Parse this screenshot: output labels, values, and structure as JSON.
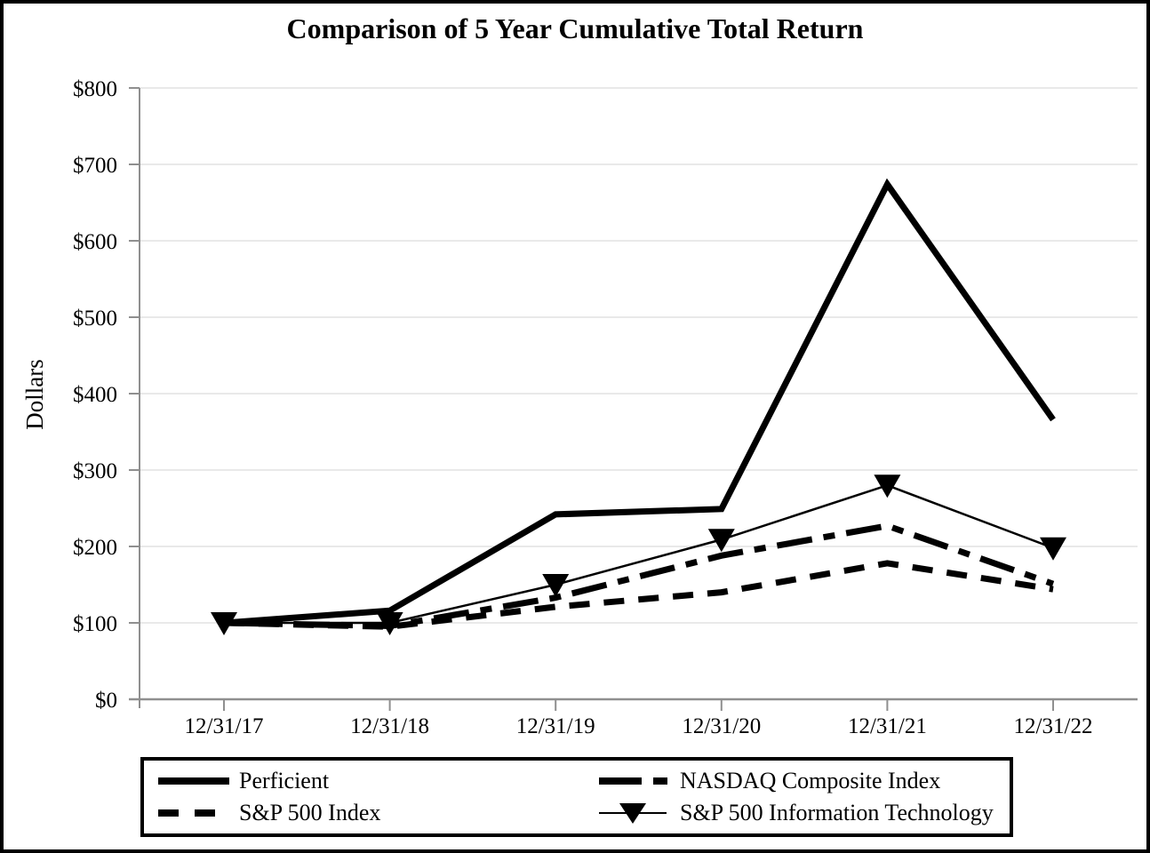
{
  "chart_data": {
    "type": "line",
    "title": "Comparison of 5 Year Cumulative Total Return",
    "ylabel": "Dollars",
    "xlabel": "",
    "ylim": [
      0,
      800
    ],
    "ytick_step": 100,
    "ytick_labels": [
      "$0",
      "$100",
      "$200",
      "$300",
      "$400",
      "$500",
      "$600",
      "$700",
      "$800"
    ],
    "categories": [
      "12/31/17",
      "12/31/18",
      "12/31/19",
      "12/31/20",
      "12/31/21",
      "12/31/22"
    ],
    "grid": true,
    "legend_position": "bottom-boxed",
    "series": [
      {
        "name": "Perficient",
        "style": "solid-thick",
        "values": [
          100,
          116,
          242,
          249,
          674,
          366
        ]
      },
      {
        "name": "NASDAQ Composite Index",
        "style": "long-dash",
        "values": [
          100,
          96,
          133,
          188,
          227,
          151
        ]
      },
      {
        "name": "S&P 500 Index",
        "style": "dashed",
        "values": [
          100,
          95,
          121,
          140,
          178,
          144
        ]
      },
      {
        "name": "S&P 500 Information Technology",
        "style": "thin-triangle",
        "values": [
          100,
          100,
          150,
          209,
          280,
          198
        ]
      }
    ],
    "colors": {
      "line": "#000000",
      "axis": "#8f8f8f",
      "gridline": "#e9e9e9",
      "text": "#000000",
      "background": "#ffffff"
    }
  }
}
